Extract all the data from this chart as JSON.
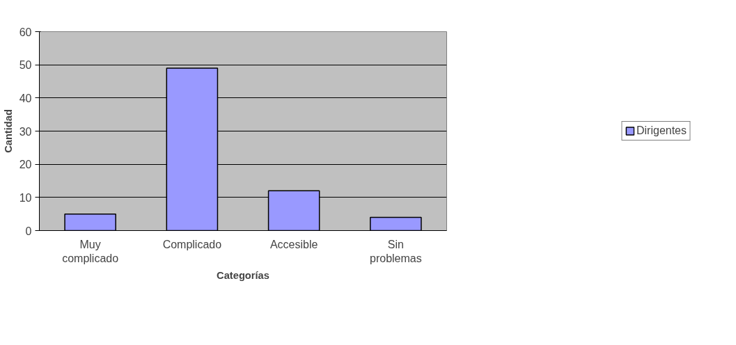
{
  "chart_data": {
    "type": "bar",
    "xlabel": "Categorías",
    "ylabel": "Cantidad",
    "categories": [
      "Muy complicado",
      "Complicado",
      "Accesible",
      "Sin problemas"
    ],
    "series": [
      {
        "name": "Dirigentes",
        "color": "#9999ff",
        "values": [
          5,
          49,
          12,
          4
        ]
      }
    ],
    "ylim": [
      0,
      60
    ],
    "yticks": [
      0,
      10,
      20,
      30,
      40,
      50,
      60
    ],
    "grid": "y",
    "legend": "right"
  }
}
